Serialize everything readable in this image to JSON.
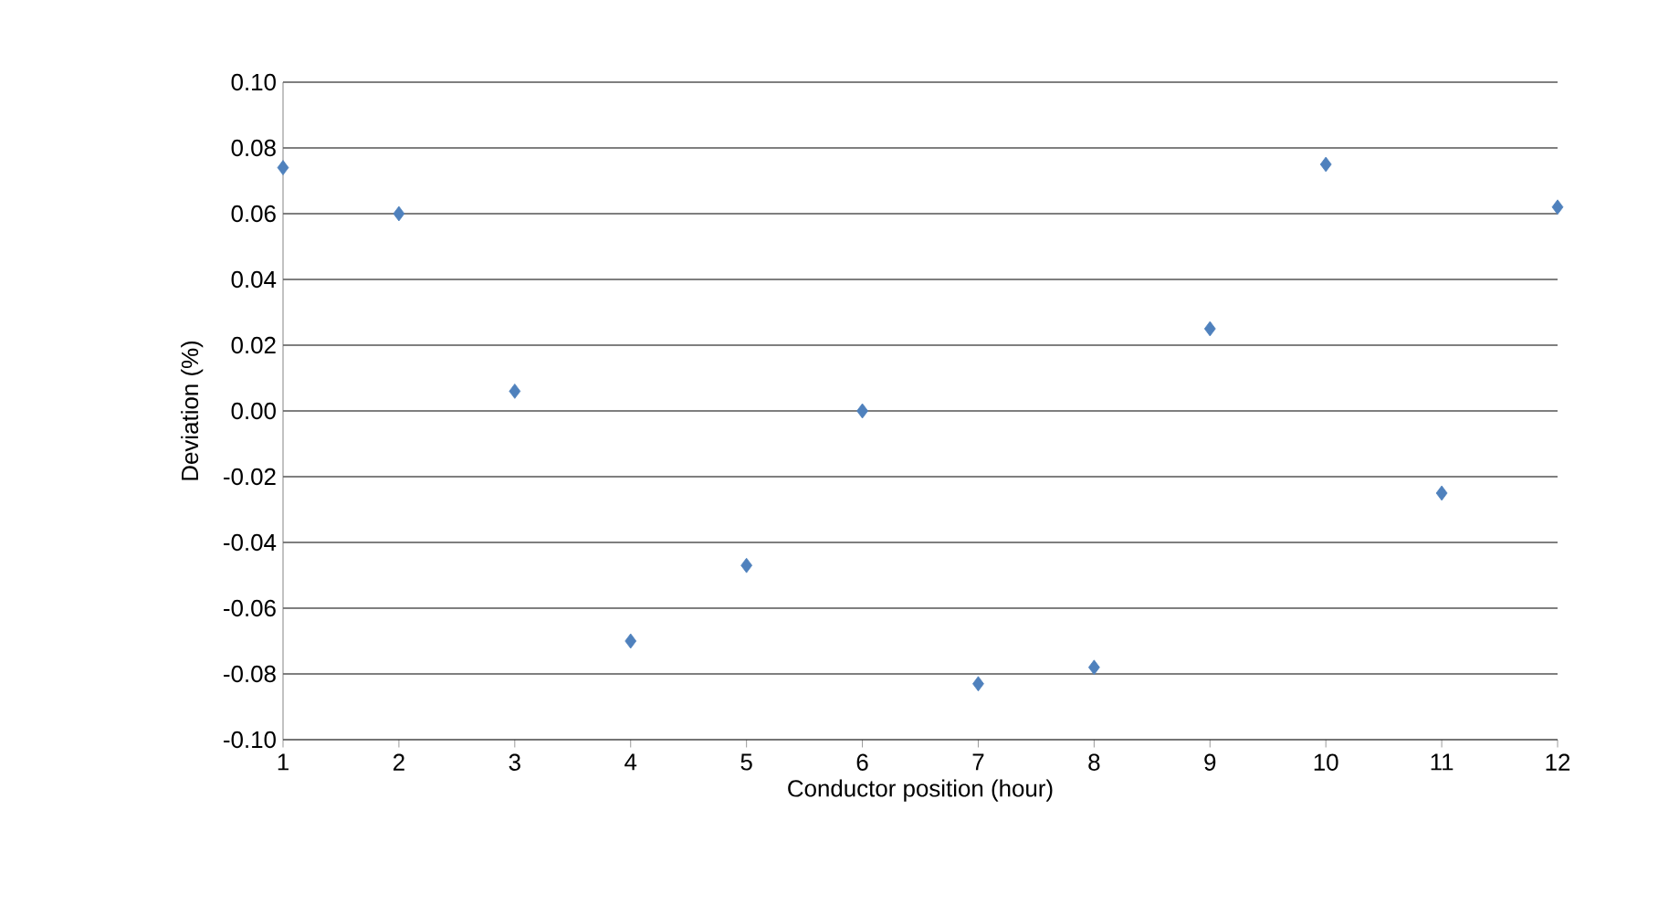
{
  "chart_data": {
    "type": "scatter",
    "xlabel": "Conductor position (hour)",
    "ylabel": "Deviation (%)",
    "x": [
      1,
      2,
      3,
      4,
      5,
      6,
      7,
      8,
      9,
      10,
      11,
      12
    ],
    "series": [
      {
        "color": "#4f81bd",
        "values": [
          0.074,
          0.06,
          0.006,
          -0.07,
          -0.047,
          0.0,
          -0.083,
          -0.078,
          0.025,
          0.075,
          -0.025,
          0.062
        ]
      }
    ],
    "xlim": [
      1,
      12
    ],
    "xticks": [
      1,
      2,
      3,
      4,
      5,
      6,
      7,
      8,
      9,
      10,
      11,
      12
    ],
    "ylim": [
      -0.1,
      0.1
    ],
    "yticks": [
      {
        "value": -0.1,
        "label": "-0.10"
      },
      {
        "value": -0.08,
        "label": "-0.08"
      },
      {
        "value": -0.06,
        "label": "-0.06"
      },
      {
        "value": -0.04,
        "label": "-0.04"
      },
      {
        "value": -0.02,
        "label": "-0.02"
      },
      {
        "value": 0,
        "label": "0.00"
      },
      {
        "value": 0.02,
        "label": "0.02"
      },
      {
        "value": 0.04,
        "label": "0.04"
      },
      {
        "value": 0.06,
        "label": "0.06"
      },
      {
        "value": 0.08,
        "label": "0.08"
      },
      {
        "value": 0.1,
        "label": "0.10"
      }
    ],
    "grid": "y",
    "marker": "diamond"
  }
}
